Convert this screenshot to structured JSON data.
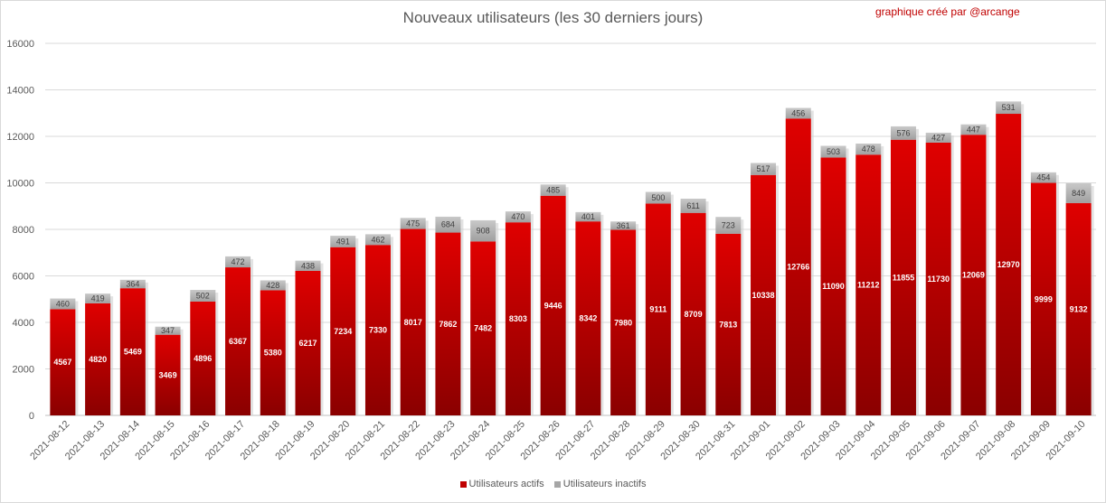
{
  "chart_data": {
    "type": "bar",
    "stacked": true,
    "title": "Nouveaux utilisateurs  (les 30 derniers  jours)",
    "credit": "graphique créé par @arcange",
    "categories": [
      "2021-08-12",
      "2021-08-13",
      "2021-08-14",
      "2021-08-15",
      "2021-08-16",
      "2021-08-17",
      "2021-08-18",
      "2021-08-19",
      "2021-08-20",
      "2021-08-21",
      "2021-08-22",
      "2021-08-23",
      "2021-08-24",
      "2021-08-25",
      "2021-08-26",
      "2021-08-27",
      "2021-08-28",
      "2021-08-29",
      "2021-08-30",
      "2021-08-31",
      "2021-09-01",
      "2021-09-02",
      "2021-09-03",
      "2021-09-04",
      "2021-09-05",
      "2021-09-06",
      "2021-09-07",
      "2021-09-08",
      "2021-09-09",
      "2021-09-10"
    ],
    "series": [
      {
        "name": "Utilisateurs actifs",
        "color": "#c00000",
        "values": [
          4567,
          4820,
          5469,
          3469,
          4896,
          6367,
          5380,
          6217,
          7234,
          7330,
          8017,
          7862,
          7482,
          8303,
          9446,
          8342,
          7980,
          9111,
          8709,
          7813,
          10338,
          12766,
          11090,
          11212,
          11855,
          11730,
          12069,
          12970,
          9999,
          9132
        ]
      },
      {
        "name": "Utilisateurs inactifs",
        "color": "#a6a6a6",
        "values": [
          460,
          419,
          364,
          347,
          502,
          472,
          428,
          438,
          491,
          462,
          475,
          684,
          908,
          470,
          485,
          401,
          361,
          500,
          611,
          723,
          517,
          456,
          503,
          478,
          576,
          427,
          447,
          531,
          454,
          849
        ]
      }
    ],
    "ylim": [
      0,
      16000
    ],
    "yticks": [
      0,
      2000,
      4000,
      6000,
      8000,
      10000,
      12000,
      14000,
      16000
    ],
    "grid": true,
    "legend": "bottom"
  }
}
